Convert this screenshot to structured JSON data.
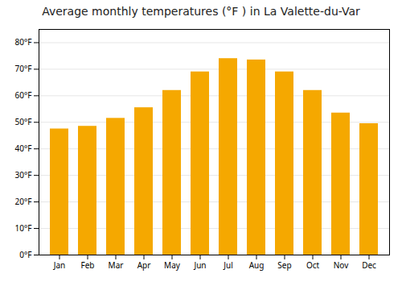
{
  "chart_data": {
    "type": "bar",
    "title": "Average monthly temperatures (°F ) in La Valette-du-Var",
    "categories": [
      "Jan",
      "Feb",
      "Mar",
      "Apr",
      "May",
      "Jun",
      "Jul",
      "Aug",
      "Sep",
      "Oct",
      "Nov",
      "Dec"
    ],
    "values": [
      47.5,
      48.5,
      51.5,
      55.5,
      62.0,
      69.0,
      74.0,
      73.5,
      69.0,
      62.0,
      53.5,
      49.5
    ],
    "color": "#F5A800",
    "ylim": [
      0,
      85
    ],
    "yticks": [
      {
        "value": 0,
        "label": "0°F"
      },
      {
        "value": 10,
        "label": "10°F"
      },
      {
        "value": 20,
        "label": "20°F"
      },
      {
        "value": 30,
        "label": "30°F"
      },
      {
        "value": 40,
        "label": "40°F"
      },
      {
        "value": 50,
        "label": "50°F"
      },
      {
        "value": 60,
        "label": "60°F"
      },
      {
        "value": 70,
        "label": "70°F"
      },
      {
        "value": 80,
        "label": "80°F"
      }
    ],
    "grid": true
  }
}
